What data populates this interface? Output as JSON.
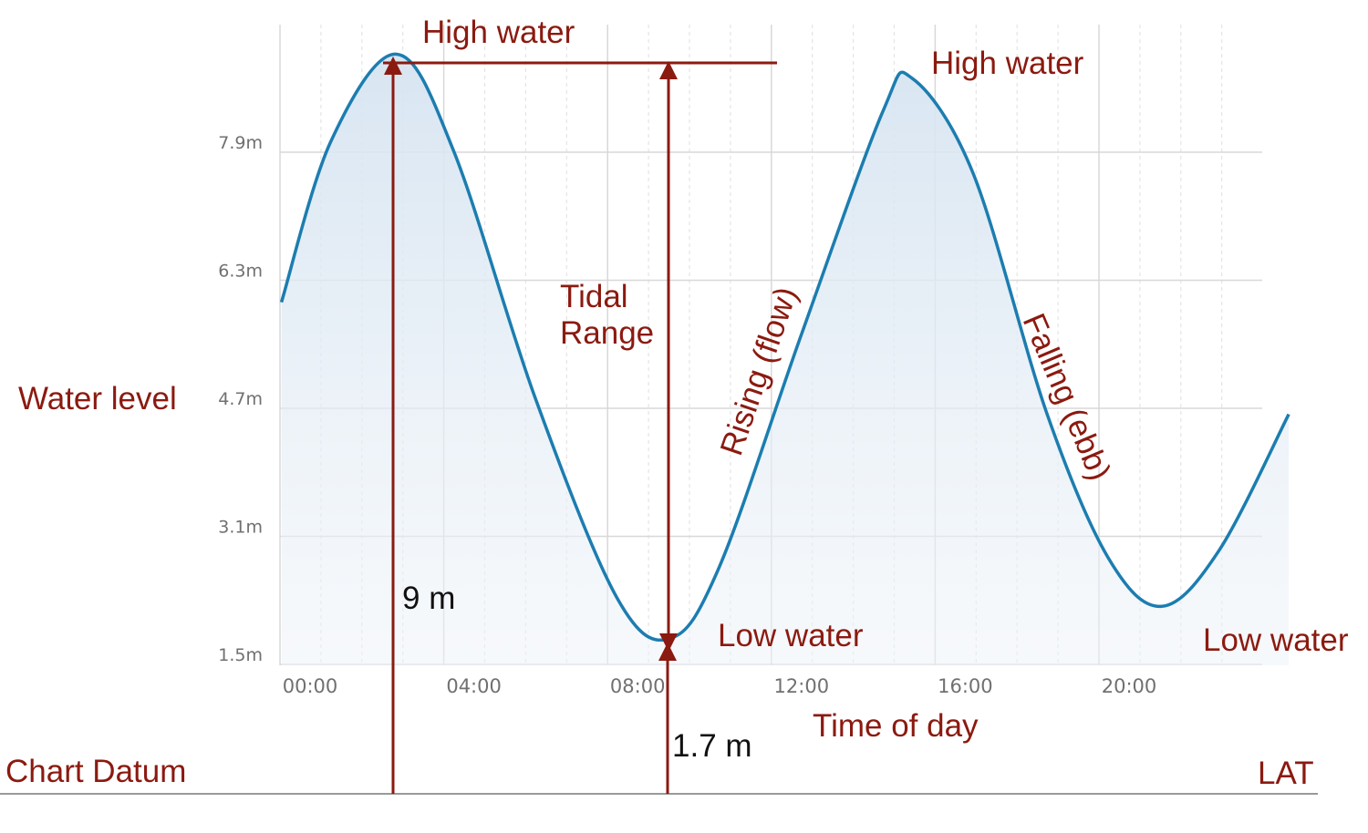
{
  "chart_data": {
    "type": "area",
    "xlabel": "Time of day",
    "ylabel": "Water level",
    "x_ticks": [
      {
        "hour": 0,
        "label": "00:00"
      },
      {
        "hour": 4,
        "label": "04:00"
      },
      {
        "hour": 8,
        "label": "08:00"
      },
      {
        "hour": 12,
        "label": "12:00"
      },
      {
        "hour": 16,
        "label": "16:00"
      },
      {
        "hour": 20,
        "label": "20:00"
      }
    ],
    "y_ticks": [
      {
        "value": 1.5,
        "label": "1.5m"
      },
      {
        "value": 3.1,
        "label": "3.1m"
      },
      {
        "value": 4.7,
        "label": "4.7m"
      },
      {
        "value": 6.3,
        "label": "6.3m"
      },
      {
        "value": 7.9,
        "label": "7.9m"
      }
    ],
    "xlim": [
      -0.7,
      23.9
    ],
    "ylim": [
      1.5,
      9.5
    ],
    "grid": true,
    "series": [
      {
        "name": "Water level",
        "color": "#1c7db0",
        "fill_color": "#dbe8f3",
        "points": [
          {
            "hour": -0.7,
            "value": 5.9
          },
          {
            "hour": 0.5,
            "value": 7.9
          },
          {
            "hour": 2.1,
            "value": 9.0
          },
          {
            "hour": 3.5,
            "value": 7.8
          },
          {
            "hour": 5.5,
            "value": 4.7
          },
          {
            "hour": 7.5,
            "value": 2.2
          },
          {
            "hour": 8.8,
            "value": 1.7
          },
          {
            "hour": 10.0,
            "value": 2.6
          },
          {
            "hour": 12.0,
            "value": 5.5
          },
          {
            "hour": 14.0,
            "value": 8.3
          },
          {
            "hour": 14.7,
            "value": 8.7
          },
          {
            "hour": 16.2,
            "value": 7.5
          },
          {
            "hour": 18.0,
            "value": 4.5
          },
          {
            "hour": 19.5,
            "value": 2.7
          },
          {
            "hour": 20.8,
            "value": 2.1
          },
          {
            "hour": 22.2,
            "value": 2.8
          },
          {
            "hour": 23.9,
            "value": 4.5
          }
        ]
      }
    ],
    "annotations": {
      "high_water_1": "High water",
      "high_water_2": "High water",
      "low_water_1": "Low water",
      "low_water_2": "Low water",
      "tidal_range_line1": "Tidal",
      "tidal_range_line2": "Range",
      "rising": "Rising (flow)",
      "falling": "Falling (ebb)",
      "high_water_height": "9 m",
      "low_water_height": "1.7 m",
      "chart_datum": "Chart Datum",
      "lat": "LAT",
      "water_level": "Water level",
      "time_of_day": "Time of day"
    },
    "colors": {
      "annotation": "#8b1a10",
      "grid_major": "#d8d8d8",
      "grid_minor": "#e4e4e4",
      "datum_line": "#999999"
    }
  }
}
